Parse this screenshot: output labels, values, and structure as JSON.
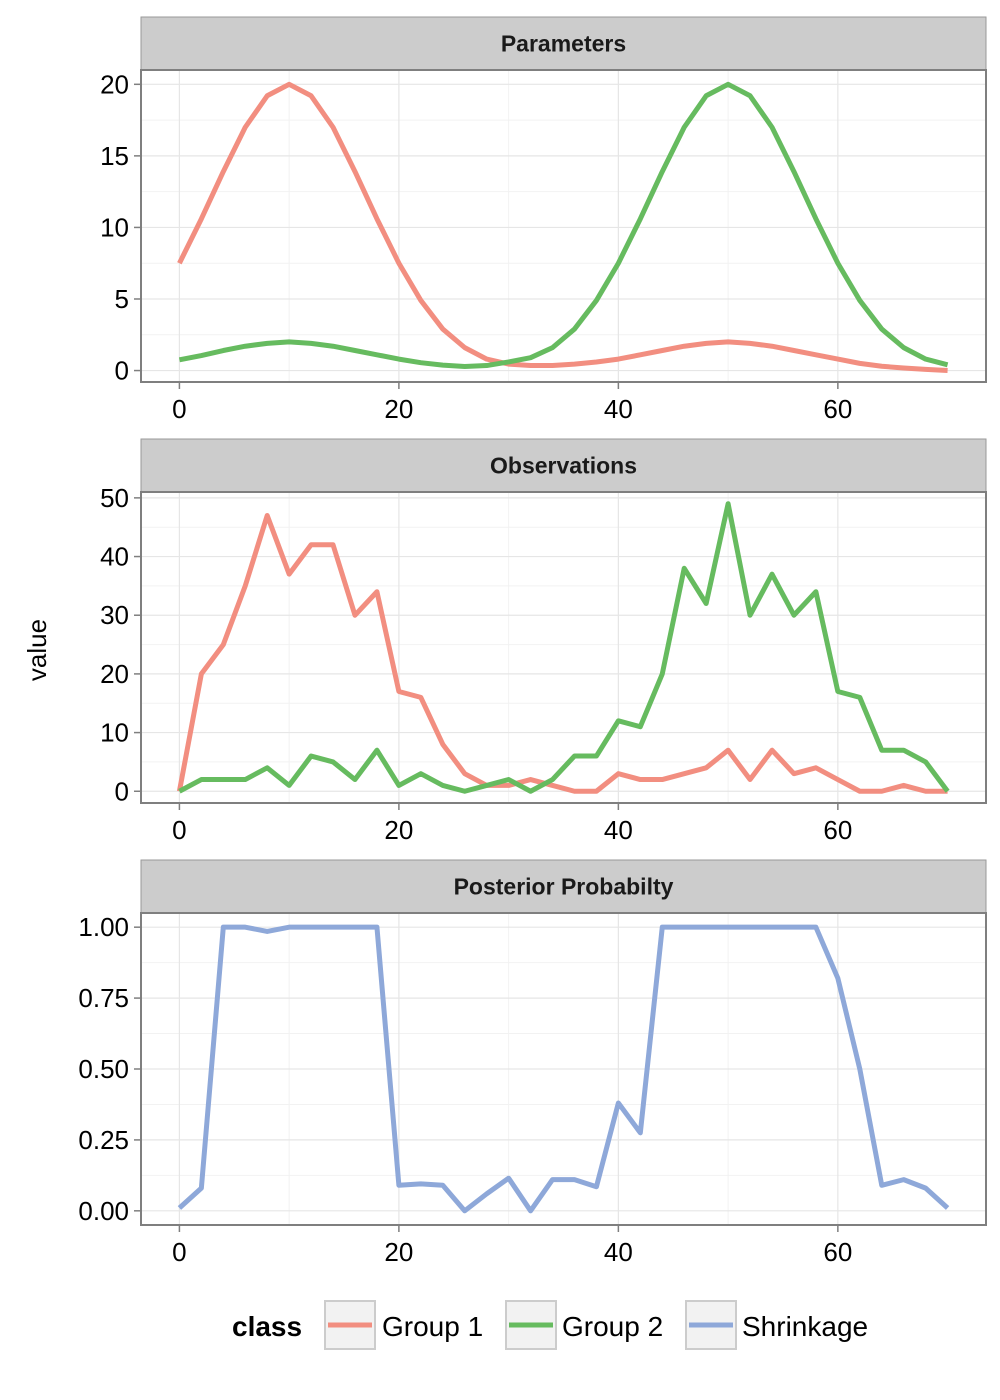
{
  "ylabel": "value",
  "legend": {
    "title": "class",
    "position": "bottom",
    "items": [
      {
        "label": "Group 1",
        "color": "#F28E80"
      },
      {
        "label": "Group 2",
        "color": "#66BB5F"
      },
      {
        "label": "Shrinkage",
        "color": "#8EA8D9"
      }
    ]
  },
  "chart_data": [
    {
      "type": "line",
      "title": "Parameters",
      "xlim": [
        -3.5,
        73.5
      ],
      "ylim": [
        -0.8,
        21.0
      ],
      "xticks": [
        0,
        20,
        40,
        60
      ],
      "xtick_labels": [
        "0",
        "20",
        "40",
        "60"
      ],
      "yticks": [
        0,
        5,
        10,
        15,
        20
      ],
      "ytick_labels": [
        "0",
        "5",
        "10",
        "15",
        "20"
      ],
      "grid": true,
      "x": [
        0,
        2,
        4,
        6,
        8,
        10,
        12,
        14,
        16,
        18,
        20,
        22,
        24,
        26,
        28,
        30,
        32,
        34,
        36,
        38,
        40,
        42,
        44,
        46,
        48,
        50,
        52,
        54,
        56,
        58,
        60,
        62,
        64,
        66,
        68,
        70
      ],
      "series": [
        {
          "name": "Group 1",
          "color": "#F28E80",
          "values": [
            7.5,
            10.6,
            13.9,
            17.0,
            19.2,
            20.0,
            19.2,
            17.0,
            13.9,
            10.6,
            7.5,
            4.9,
            2.9,
            1.6,
            0.8,
            0.45,
            0.35,
            0.35,
            0.45,
            0.6,
            0.8,
            1.1,
            1.4,
            1.7,
            1.9,
            2.0,
            1.9,
            1.7,
            1.4,
            1.1,
            0.8,
            0.5,
            0.3,
            0.18,
            0.08,
            0.0
          ]
        },
        {
          "name": "Group 2",
          "color": "#66BB5F",
          "values": [
            0.75,
            1.05,
            1.4,
            1.7,
            1.9,
            2.0,
            1.9,
            1.7,
            1.4,
            1.1,
            0.8,
            0.55,
            0.38,
            0.28,
            0.35,
            0.6,
            0.9,
            1.6,
            2.9,
            4.9,
            7.5,
            10.6,
            13.9,
            17.0,
            19.2,
            20.0,
            19.2,
            17.0,
            13.9,
            10.6,
            7.5,
            4.9,
            2.9,
            1.6,
            0.8,
            0.4
          ]
        }
      ]
    },
    {
      "type": "line",
      "title": "Observations",
      "xlim": [
        -3.5,
        73.5
      ],
      "ylim": [
        -2.0,
        51.0
      ],
      "xticks": [
        0,
        20,
        40,
        60
      ],
      "xtick_labels": [
        "0",
        "20",
        "40",
        "60"
      ],
      "yticks": [
        0,
        10,
        20,
        30,
        40,
        50
      ],
      "ytick_labels": [
        "0",
        "10",
        "20",
        "30",
        "40",
        "50"
      ],
      "grid": true,
      "x": [
        0,
        2,
        4,
        6,
        8,
        10,
        12,
        14,
        16,
        18,
        20,
        22,
        24,
        26,
        28,
        30,
        32,
        34,
        36,
        38,
        40,
        42,
        44,
        46,
        48,
        50,
        52,
        54,
        56,
        58,
        60,
        62,
        64,
        66,
        68,
        70
      ],
      "series": [
        {
          "name": "Group 1",
          "color": "#F28E80",
          "values": [
            0,
            20,
            25,
            35,
            47,
            37,
            42,
            42,
            30,
            34,
            17,
            16,
            8,
            3,
            1,
            1,
            2,
            1,
            0,
            0,
            3,
            2,
            2,
            3,
            4,
            7,
            2,
            7,
            3,
            4,
            2,
            0,
            0,
            1,
            0,
            0
          ]
        },
        {
          "name": "Group 2",
          "color": "#66BB5F",
          "values": [
            0,
            2,
            2,
            2,
            4,
            1,
            6,
            5,
            2,
            7,
            1,
            3,
            1,
            0,
            1,
            2,
            0,
            2,
            6,
            6,
            12,
            11,
            20,
            38,
            32,
            49,
            30,
            37,
            30,
            34,
            17,
            16,
            7,
            7,
            5,
            0
          ]
        }
      ]
    },
    {
      "type": "line",
      "title": "Posterior Probabilty",
      "xlim": [
        -3.5,
        73.5
      ],
      "ylim": [
        -0.05,
        1.05
      ],
      "xticks": [
        0,
        20,
        40,
        60
      ],
      "xtick_labels": [
        "0",
        "20",
        "40",
        "60"
      ],
      "yticks": [
        0,
        0.25,
        0.5,
        0.75,
        1.0
      ],
      "ytick_labels": [
        "0.00",
        "0.25",
        "0.50",
        "0.75",
        "1.00"
      ],
      "grid": true,
      "x": [
        0,
        2,
        4,
        6,
        8,
        10,
        12,
        14,
        16,
        18,
        20,
        22,
        24,
        26,
        28,
        30,
        32,
        34,
        36,
        38,
        40,
        42,
        44,
        46,
        48,
        50,
        52,
        54,
        56,
        58,
        60,
        62,
        64,
        66,
        68,
        70
      ],
      "series": [
        {
          "name": "Shrinkage",
          "color": "#8EA8D9",
          "values": [
            0.01,
            0.08,
            1.0,
            1.0,
            0.985,
            1.0,
            1.0,
            1.0,
            1.0,
            1.0,
            0.09,
            0.095,
            0.09,
            0.0,
            0.06,
            0.115,
            0.0,
            0.11,
            0.11,
            0.085,
            0.38,
            0.275,
            1.0,
            1.0,
            1.0,
            1.0,
            1.0,
            1.0,
            1.0,
            1.0,
            0.82,
            0.5,
            0.09,
            0.11,
            0.08,
            0.01
          ]
        }
      ]
    }
  ]
}
